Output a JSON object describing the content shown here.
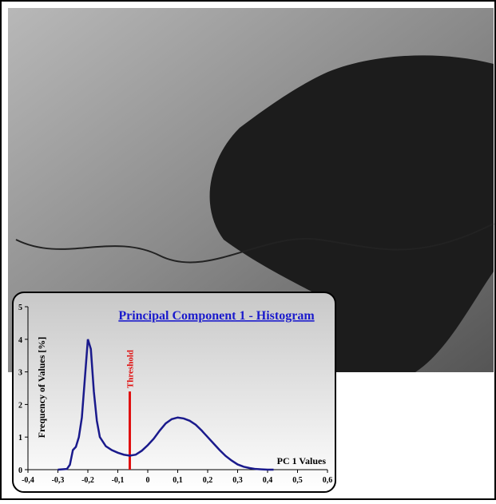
{
  "chart_data": {
    "type": "line",
    "title": "Principal Component 1 - Histogram",
    "x_label": "PC 1 Values",
    "y_label": "Frequency of Values [%]",
    "xlim": [
      -0.4,
      0.6
    ],
    "ylim": [
      0,
      5
    ],
    "xticks": [
      {
        "value": -0.4,
        "label": "-0,4"
      },
      {
        "value": -0.3,
        "label": "-0,3"
      },
      {
        "value": -0.2,
        "label": "-0,2"
      },
      {
        "value": -0.1,
        "label": "-0,1"
      },
      0,
      {
        "value": 0.1,
        "label": "0,1"
      },
      {
        "value": 0.2,
        "label": "0,2"
      },
      {
        "value": 0.3,
        "label": "0,3"
      },
      {
        "value": 0.4,
        "label": "0,4"
      },
      {
        "value": 0.5,
        "label": "0,5"
      },
      {
        "value": 0.6,
        "label": "0,6"
      }
    ],
    "yticks": [
      0,
      1,
      2,
      3,
      4,
      5
    ],
    "series": [
      {
        "color": "#1a1a8c",
        "x": [
          -0.3,
          -0.27,
          -0.26,
          -0.25,
          -0.24,
          -0.23,
          -0.22,
          -0.21,
          -0.2,
          -0.19,
          -0.18,
          -0.17,
          -0.16,
          -0.14,
          -0.12,
          -0.1,
          -0.08,
          -0.06,
          -0.04,
          -0.02,
          0,
          0.02,
          0.04,
          0.06,
          0.08,
          0.1,
          0.12,
          0.14,
          0.16,
          0.18,
          0.2,
          0.22,
          0.24,
          0.26,
          0.28,
          0.3,
          0.32,
          0.34,
          0.36,
          0.38,
          0.4,
          0.42
        ],
        "values": [
          0,
          0.02,
          0.15,
          0.6,
          0.7,
          1.0,
          1.6,
          2.8,
          4.0,
          3.7,
          2.4,
          1.5,
          1.0,
          0.72,
          0.6,
          0.52,
          0.46,
          0.43,
          0.46,
          0.58,
          0.75,
          0.95,
          1.2,
          1.42,
          1.55,
          1.6,
          1.57,
          1.5,
          1.38,
          1.2,
          1.0,
          0.8,
          0.6,
          0.42,
          0.28,
          0.16,
          0.09,
          0.05,
          0.02,
          0.01,
          0,
          0
        ]
      }
    ],
    "threshold": {
      "label": "Threshold",
      "x": -0.06,
      "y": 2.4,
      "color": "#e01010"
    }
  }
}
